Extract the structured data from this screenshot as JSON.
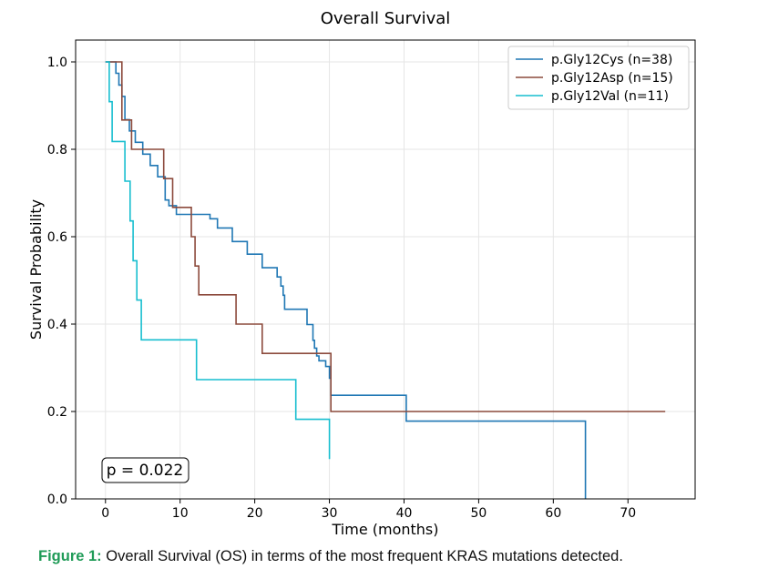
{
  "chart_data": {
    "type": "line",
    "step": true,
    "title": "Overall Survival",
    "xlabel": "Time (months)",
    "ylabel": "Survival Probability",
    "xlim": [
      -4,
      79
    ],
    "ylim": [
      0,
      1.05
    ],
    "xticks": [
      0,
      10,
      20,
      30,
      40,
      50,
      60,
      70
    ],
    "yticks": [
      0.0,
      0.2,
      0.4,
      0.6,
      0.8,
      1.0
    ],
    "ytick_labels": [
      "0.0",
      "0.2",
      "0.4",
      "0.6",
      "0.8",
      "1.0"
    ],
    "grid": true,
    "legend_position": "top-right",
    "annotation": "p = 0.022",
    "series": [
      {
        "name": "p.Gly12Cys (n=38)",
        "color": "#1f77b4",
        "x": [
          0,
          1.4,
          1.8,
          2.2,
          2.6,
          3.2,
          4.0,
          5.0,
          6.0,
          7.0,
          8.0,
          8.5,
          9.5,
          14.0,
          15.0,
          17.0,
          19.0,
          21.0,
          23.0,
          23.5,
          23.8,
          24.0,
          27.0,
          27.8,
          28.0,
          28.3,
          28.6,
          29.5,
          30.0,
          30.2,
          40.3,
          64.3,
          64.3
        ],
        "y": [
          1.0,
          0.974,
          0.947,
          0.921,
          0.868,
          0.842,
          0.816,
          0.789,
          0.763,
          0.737,
          0.684,
          0.671,
          0.651,
          0.641,
          0.62,
          0.589,
          0.56,
          0.529,
          0.508,
          0.487,
          0.466,
          0.434,
          0.399,
          0.363,
          0.345,
          0.327,
          0.316,
          0.303,
          0.276,
          0.237,
          0.178,
          0.178,
          0.0
        ]
      },
      {
        "name": "p.Gly12Asp (n=15)",
        "color": "#8c4a3c",
        "x": [
          0,
          1.0,
          2.2,
          3.5,
          7.0,
          7.8,
          9.0,
          11.5,
          12.0,
          12.5,
          17.5,
          21.0,
          30.2,
          75.0
        ],
        "y": [
          1.0,
          1.0,
          0.867,
          0.8,
          0.8,
          0.733,
          0.667,
          0.6,
          0.533,
          0.467,
          0.4,
          0.333,
          0.2,
          0.2
        ]
      },
      {
        "name": "p.Gly12Val (n=11)",
        "color": "#17becf",
        "x": [
          0,
          0.5,
          0.9,
          2.6,
          3.3,
          3.7,
          4.2,
          4.8,
          12.2,
          25.5,
          30.0
        ],
        "y": [
          1.0,
          0.909,
          0.818,
          0.727,
          0.636,
          0.545,
          0.455,
          0.364,
          0.273,
          0.182,
          0.091
        ]
      }
    ]
  },
  "caption": {
    "label": "Figure 1:",
    "text": " Overall Survival (OS) in terms of the most frequent KRAS mutations detected."
  }
}
